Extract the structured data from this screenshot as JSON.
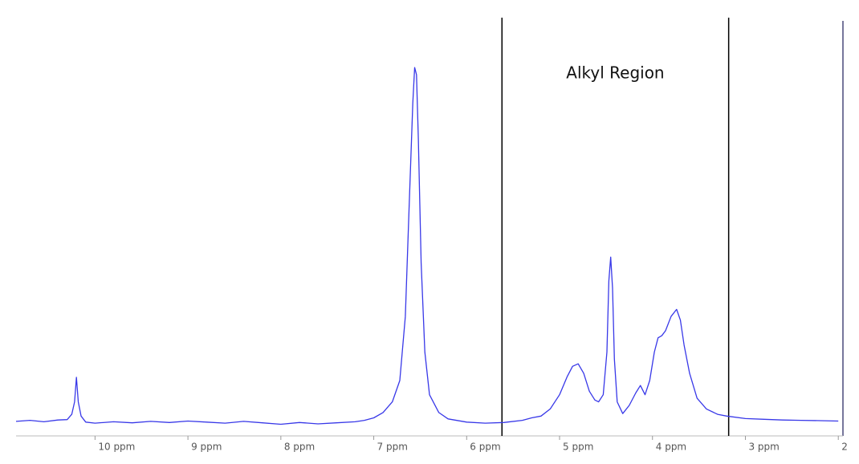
{
  "chart_data": {
    "type": "line",
    "annotation": "Alkyl Region",
    "region": [
      5.62,
      3.18
    ],
    "color": "#3838e8",
    "xlim": [
      10.85,
      1.95
    ],
    "ylim": [
      -2,
      105
    ],
    "xticks": [
      {
        "value": 10,
        "label": "10 ppm"
      },
      {
        "value": 9,
        "label": "9 ppm"
      },
      {
        "value": 8,
        "label": "8 ppm"
      },
      {
        "value": 7,
        "label": "7 ppm"
      },
      {
        "value": 6,
        "label": "6 ppm"
      },
      {
        "value": 5,
        "label": "5 ppm"
      },
      {
        "value": 4,
        "label": "4 ppm"
      },
      {
        "value": 3,
        "label": "3 ppm"
      },
      2
    ],
    "x": [
      10.85,
      10.7,
      10.55,
      10.4,
      10.3,
      10.25,
      10.22,
      10.2,
      10.18,
      10.15,
      10.1,
      10.0,
      9.8,
      9.6,
      9.4,
      9.2,
      9.0,
      8.8,
      8.6,
      8.4,
      8.2,
      8.0,
      7.8,
      7.6,
      7.4,
      7.2,
      7.1,
      7.0,
      6.9,
      6.8,
      6.72,
      6.66,
      6.62,
      6.58,
      6.56,
      6.54,
      6.52,
      6.49,
      6.45,
      6.4,
      6.3,
      6.2,
      6.0,
      5.8,
      5.6,
      5.4,
      5.3,
      5.2,
      5.1,
      5.0,
      4.92,
      4.86,
      4.8,
      4.74,
      4.68,
      4.62,
      4.58,
      4.53,
      4.49,
      4.47,
      4.45,
      4.43,
      4.41,
      4.38,
      4.32,
      4.25,
      4.18,
      4.13,
      4.08,
      4.03,
      3.98,
      3.94,
      3.9,
      3.86,
      3.8,
      3.74,
      3.7,
      3.66,
      3.6,
      3.52,
      3.42,
      3.3,
      3.2,
      3.0,
      2.8,
      2.6,
      2.4,
      2.2,
      2.0
    ],
    "values": [
      0.5,
      0.8,
      0.4,
      0.9,
      1.0,
      2.5,
      6,
      12.9,
      6,
      2,
      0.3,
      0.0,
      0.4,
      0.1,
      0.5,
      0.2,
      0.6,
      0.3,
      0.0,
      0.5,
      0.1,
      -0.3,
      0.2,
      -0.2,
      0.1,
      0.4,
      0.8,
      1.5,
      3,
      6,
      12,
      30,
      60,
      90,
      100,
      98,
      80,
      45,
      20,
      8,
      3,
      1.2,
      0.3,
      0.0,
      0.2,
      0.8,
      1.5,
      2,
      4,
      8,
      13,
      16,
      16.7,
      14,
      9,
      6.5,
      6,
      8,
      20,
      40,
      46.7,
      38,
      18,
      6,
      2.7,
      5,
      8.5,
      10.6,
      8,
      12,
      20,
      24,
      24.6,
      26,
      30,
      32,
      29,
      22,
      14,
      7,
      4,
      2.5,
      2,
      1.3,
      1.1,
      0.9,
      0.8,
      0.7,
      0.6
    ]
  }
}
